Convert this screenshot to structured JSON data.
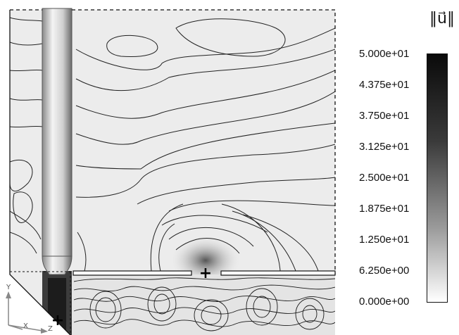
{
  "legend": {
    "title": "‖u⃗‖",
    "ticks": [
      "5.000e+01",
      "4.375e+01",
      "3.750e+01",
      "3.125e+01",
      "2.500e+01",
      "1.875e+01",
      "1.250e+01",
      "6.250e+00",
      "0.000e+00"
    ],
    "colors": {
      "high": "#0a0a0a",
      "low": "#ffffff"
    }
  },
  "axes": {
    "y": "Y",
    "x": "X",
    "z": "Z"
  },
  "markers": [
    "+",
    "+"
  ]
}
